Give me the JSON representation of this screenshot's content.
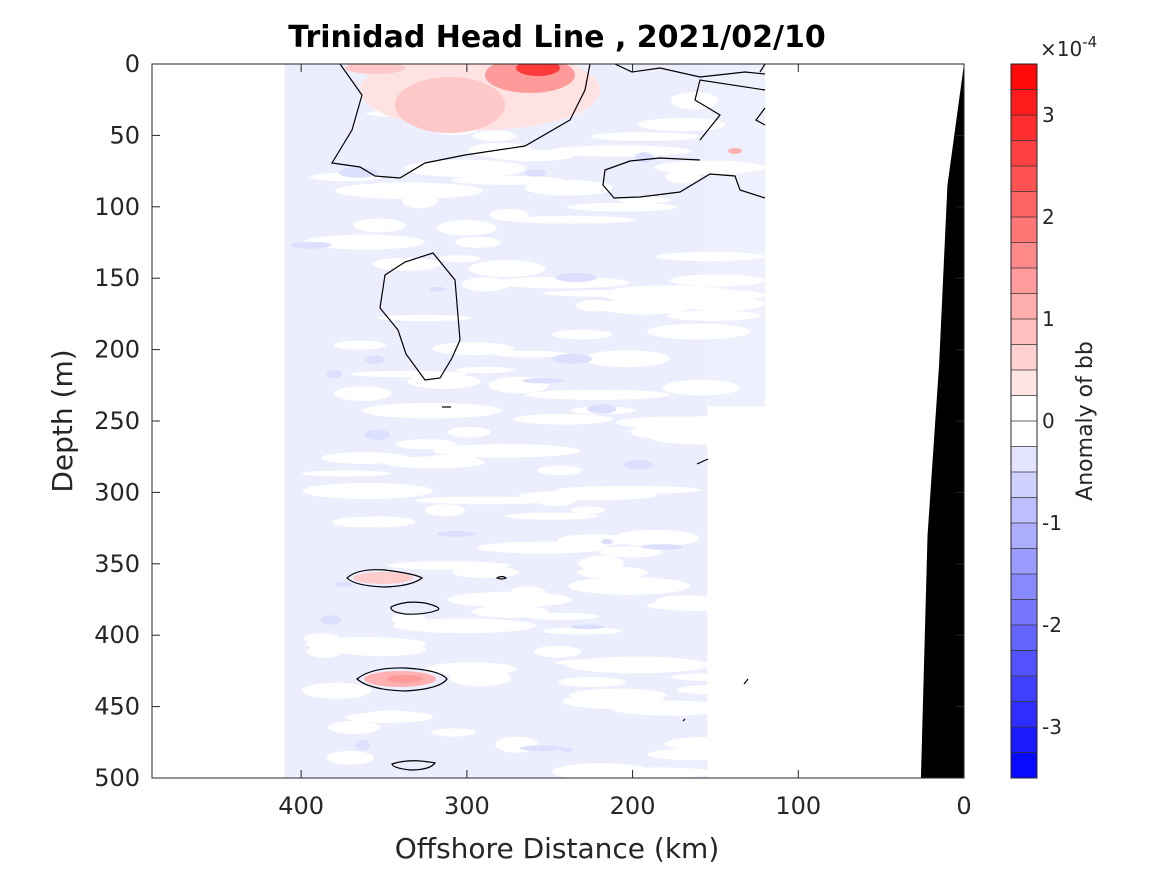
{
  "chart_data": {
    "type": "heatmap",
    "title": "Trinidad Head Line , 2021/02/10",
    "xlabel": "Offshore Distance (km)",
    "ylabel": "Depth (m)",
    "xlim": [
      490,
      0
    ],
    "ylim": [
      500,
      0
    ],
    "x_reversed": true,
    "y_reversed": true,
    "x_ticks": [
      400,
      300,
      200,
      100,
      0
    ],
    "x_tick_labels": [
      "400",
      "300",
      "200",
      "100",
      "0"
    ],
    "y_ticks": [
      0,
      50,
      100,
      150,
      200,
      250,
      300,
      350,
      400,
      450,
      500
    ],
    "y_tick_labels": [
      "0",
      "50",
      "100",
      "150",
      "200",
      "250",
      "300",
      "350",
      "400",
      "450",
      "500"
    ],
    "colorbar": {
      "label": "Anomaly of bb",
      "exponent_label": "×10",
      "exponent_power": "-4",
      "range": [
        -3.5,
        3.5
      ],
      "ticks": [
        -3,
        -2,
        -1,
        0,
        1,
        2,
        3
      ],
      "tick_labels": [
        "-3",
        "-2",
        "-1",
        "0",
        "1",
        "2",
        "3"
      ],
      "levels": 28,
      "low_color": "#0000ff",
      "zero_color": "#ffffff",
      "high_color": "#ff0000"
    },
    "data_extent_km": [
      410,
      120
    ],
    "bathymetry_color": "#000000",
    "bathymetry": [
      {
        "km": 0,
        "depth": 0
      },
      {
        "km": 10,
        "depth": 85
      },
      {
        "km": 15,
        "depth": 210
      },
      {
        "km": 22,
        "depth": 330
      },
      {
        "km": 26,
        "depth": 500
      }
    ],
    "anomaly_features": [
      {
        "label": "surface positive patch",
        "km": 262,
        "depth": 5,
        "value": 3.2
      },
      {
        "label": "subsurface positive patch",
        "km": 290,
        "depth": 28,
        "value": 0.8
      },
      {
        "label": "positive patch",
        "km": 350,
        "depth": 361,
        "value": 0.5
      },
      {
        "label": "positive patch",
        "km": 342,
        "depth": 431,
        "value": 0.8
      },
      {
        "label": "small positive patch",
        "km": 131,
        "depth": 61,
        "value": 0.7
      }
    ],
    "background_anomaly": -0.25
  }
}
